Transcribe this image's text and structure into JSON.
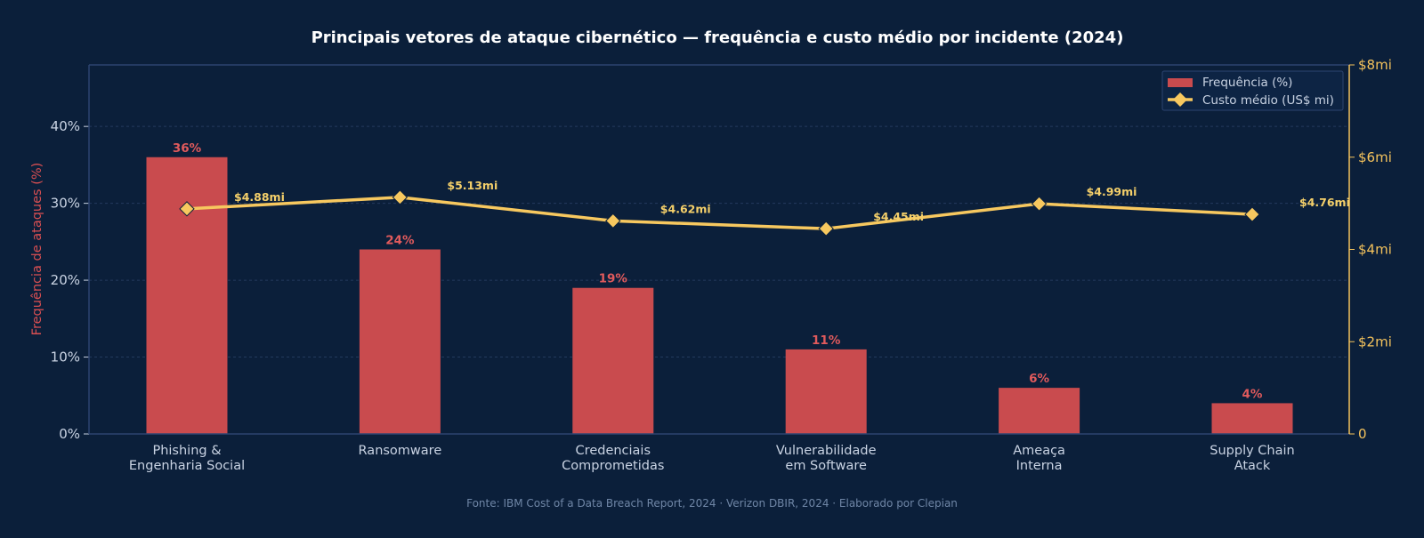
{
  "colors": {
    "background": "#0b1f3a",
    "bar": "#c94b4e",
    "bar_label": "#e05a5c",
    "line": "#f7c85f",
    "cost_label": "#f5d06a",
    "axis": "#2c4470",
    "grid": "#233a5e",
    "tick_left": "#c9d3e3",
    "tick_right": "#f5c35c",
    "source": "#6f86a6"
  },
  "source_note": "Fonte: IBM Cost of a Data Breach Report, 2024 · Verizon DBIR, 2024 · Elaborado por Clepian",
  "chart_data": {
    "type": "bar",
    "title": "Principais vetores de ataque cibernético — frequência e custo médio por incidente (2024)",
    "ylabel": "Frequência de ataques (%)",
    "y2label": "",
    "categories": [
      [
        "Phishing &",
        "Engenharia Social"
      ],
      [
        "Ransomware"
      ],
      [
        "Credenciais",
        "Comprometidas"
      ],
      [
        "Vulnerabilidade",
        "em Software"
      ],
      [
        "Ameaça",
        "Interna"
      ],
      [
        "Supply Chain",
        "Atack"
      ]
    ],
    "ylim": [
      0,
      48
    ],
    "yticks": [
      0,
      10,
      20,
      30,
      40
    ],
    "ytick_labels": [
      "0%",
      "10%",
      "20%",
      "30%",
      "40%"
    ],
    "y2lim": [
      0,
      8
    ],
    "y2ticks": [
      0,
      2,
      4,
      6,
      8
    ],
    "y2tick_labels": [
      "0",
      "$2mi",
      "$4mi",
      "$6mi",
      "$8mi"
    ],
    "grid": true,
    "legend_position": "top-right",
    "series": [
      {
        "name": "Frequência (%)",
        "type": "bar",
        "axis": "left",
        "values": [
          36,
          24,
          19,
          11,
          6,
          4
        ],
        "labels": [
          "36%",
          "24%",
          "19%",
          "11%",
          "6%",
          "4%"
        ]
      },
      {
        "name": "Custo médio (US$ mi)",
        "type": "line",
        "axis": "right",
        "marker": "diamond",
        "values": [
          4.88,
          5.13,
          4.62,
          4.45,
          4.99,
          4.76
        ],
        "labels": [
          "$4.88mi",
          "$5.13mi",
          "$4.62mi",
          "$4.45mi",
          "$4.99mi",
          "$4.76mi"
        ]
      }
    ]
  }
}
